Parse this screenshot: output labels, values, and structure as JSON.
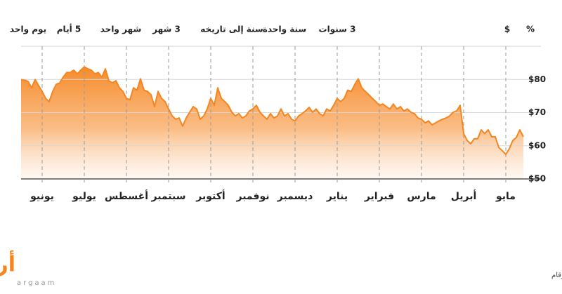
{
  "range_buttons": [
    "يوم واحد",
    "5 أيام",
    "شهر واحد",
    "3 شهر",
    "سنة إلى تاريخه",
    "سنة واحدة",
    "3 سنوات"
  ],
  "unit_buttons": [
    "$",
    "%"
  ],
  "chart_data": {
    "type": "area",
    "color": "#f5851f",
    "values": [
      80.0,
      79.8,
      79.4,
      77.5,
      80.0,
      78.1,
      76.4,
      74.3,
      73.3,
      76.4,
      78.5,
      79.0,
      80.7,
      82.1,
      82.1,
      82.8,
      81.7,
      82.8,
      83.8,
      83.2,
      82.8,
      81.7,
      82.1,
      80.7,
      83.2,
      79.6,
      79.0,
      79.6,
      77.5,
      76.4,
      74.3,
      73.9,
      77.5,
      76.8,
      80.2,
      76.8,
      76.4,
      75.4,
      71.8,
      76.4,
      74.3,
      73.3,
      71.1,
      69.0,
      68.0,
      68.4,
      65.9,
      68.4,
      70.1,
      71.8,
      71.1,
      68.0,
      69.0,
      71.1,
      74.3,
      72.2,
      77.5,
      74.3,
      73.3,
      72.2,
      70.1,
      69.0,
      69.7,
      68.4,
      69.0,
      70.5,
      71.1,
      72.2,
      70.1,
      69.0,
      68.0,
      69.7,
      68.4,
      69.0,
      71.1,
      69.0,
      69.7,
      68.0,
      67.5,
      69.0,
      69.7,
      70.5,
      71.6,
      70.1,
      71.1,
      69.7,
      69.0,
      71.1,
      70.5,
      72.2,
      74.3,
      73.3,
      74.3,
      76.8,
      76.4,
      78.5,
      80.2,
      77.5,
      76.4,
      75.4,
      74.3,
      73.3,
      72.2,
      72.6,
      71.8,
      71.1,
      72.6,
      71.1,
      71.8,
      70.5,
      71.1,
      70.1,
      69.7,
      68.4,
      68.0,
      66.9,
      67.5,
      66.3,
      66.9,
      67.5,
      68.0,
      68.4,
      69.0,
      70.1,
      70.5,
      72.2,
      63.7,
      61.6,
      60.6,
      62.1,
      62.1,
      64.8,
      63.7,
      64.8,
      62.7,
      62.7,
      59.5,
      58.5,
      57.4,
      59.1,
      61.6,
      62.5,
      64.8,
      62.7
    ],
    "xticks": [
      {
        "value": 6,
        "label": "يونيو"
      },
      {
        "value": 18,
        "label": "يوليو"
      },
      {
        "value": 30,
        "label": "أغسطس"
      },
      {
        "value": 42,
        "label": "سبتمبر"
      },
      {
        "value": 54,
        "label": "أكتوبر"
      },
      {
        "value": 66,
        "label": "نوفمبر"
      },
      {
        "value": 78,
        "label": "ديسمبر"
      },
      {
        "value": 90,
        "label": "يناير"
      },
      {
        "value": 102,
        "label": "فبراير"
      },
      {
        "value": 114,
        "label": "مارس"
      },
      {
        "value": 126,
        "label": "أبريل"
      },
      {
        "value": 138,
        "label": "مايو"
      }
    ],
    "ylim": [
      50,
      90
    ],
    "yticks": [
      {
        "value": 50,
        "label": "$50"
      },
      {
        "value": 60,
        "label": "$60"
      },
      {
        "value": 70,
        "label": "$70"
      },
      {
        "value": 80,
        "label": "$80"
      }
    ],
    "grid": true
  },
  "source": "المصدر: وول ستريت جورنال/أرقام",
  "logo": {
    "name": "أرقام",
    "latin": "argaam"
  }
}
